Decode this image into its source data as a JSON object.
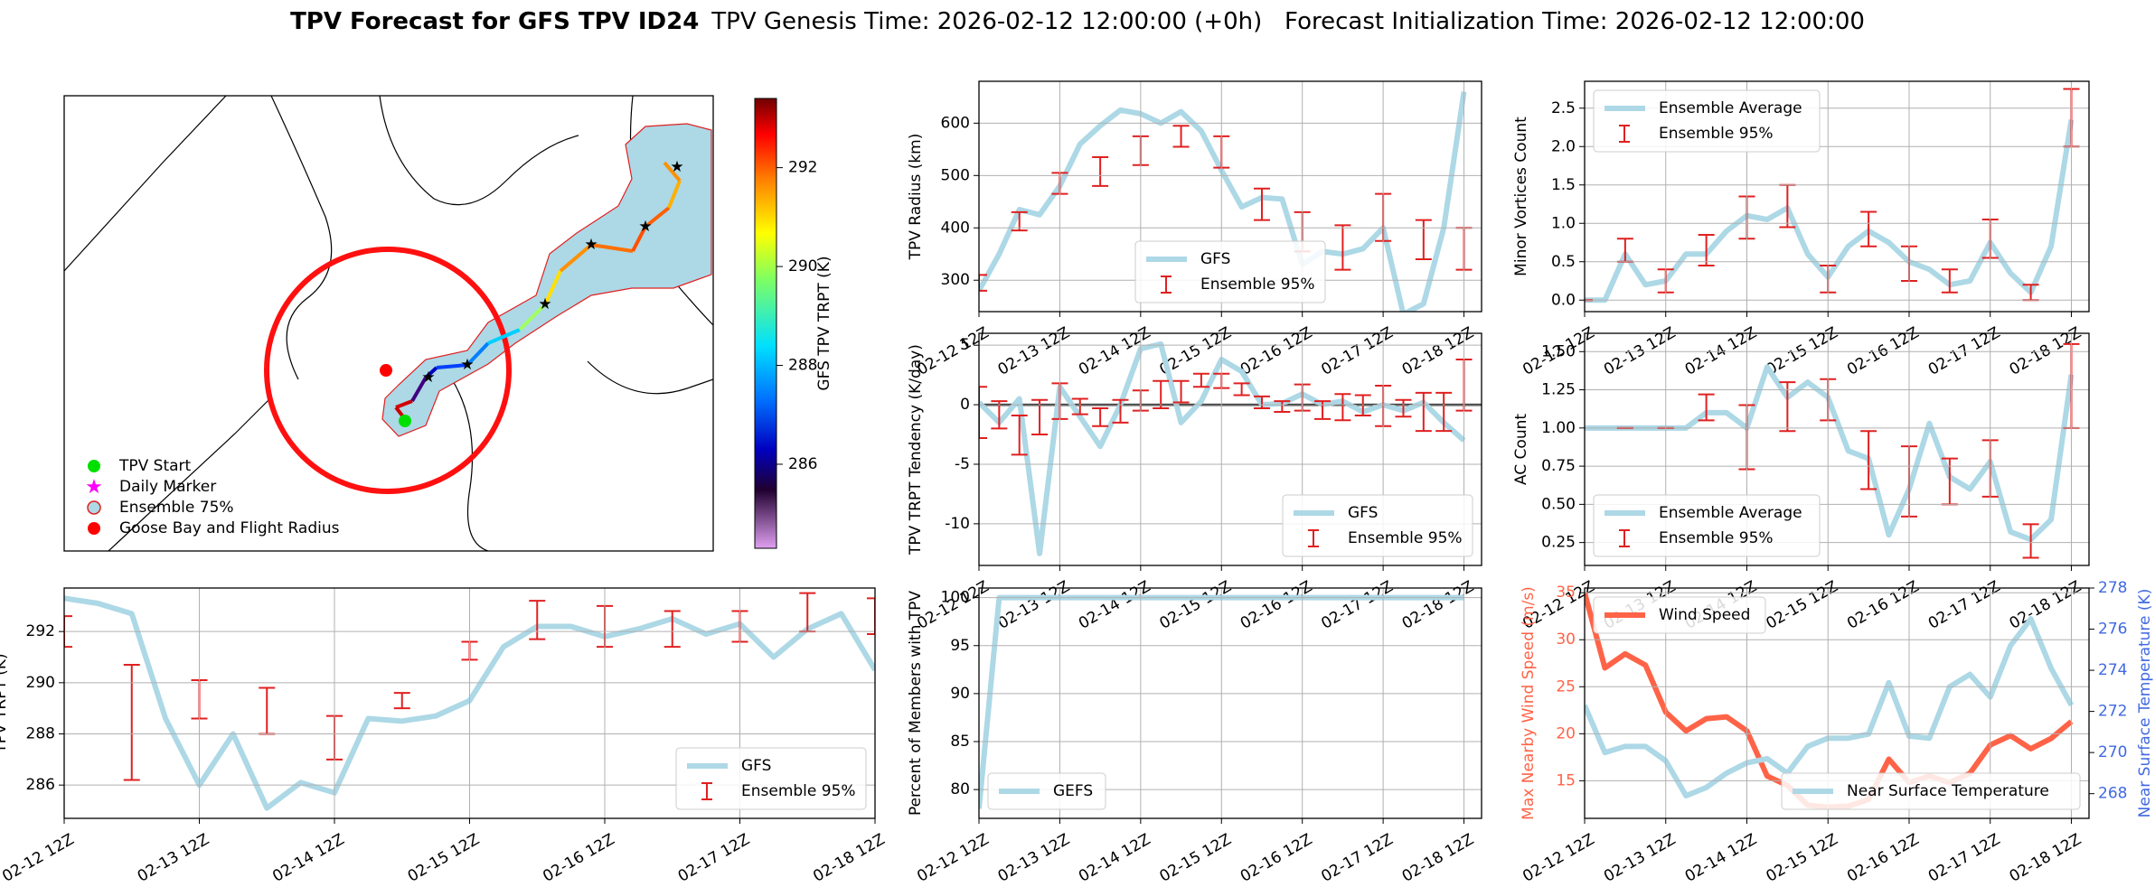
{
  "title": "TPV Forecast for GFS TPV ID24",
  "subtitle": "TPV Genesis Time: 2026-02-12 12:00:00 (+0h)   Forecast Initialization Time: 2026-02-12 12:00:00",
  "chart_data": [
    {
      "type": "map",
      "legend": [
        {
          "name": "TPV Start",
          "marker": "circle",
          "color": "#00e000"
        },
        {
          "name": "Daily Marker",
          "marker": "star",
          "color": "#ff00ff"
        },
        {
          "name": "Ensemble 75%",
          "marker": "circle",
          "color": "#add8e6",
          "edge": "#e02020"
        },
        {
          "name": "Goose Bay and Flight Radius",
          "marker": "circle",
          "color": "#ff0000"
        }
      ],
      "colorbar": {
        "label": "GFS TPV TRPT (K)",
        "clim": [
          284.3,
          293.4
        ],
        "ticks": [
          286,
          288,
          290,
          292
        ]
      }
    },
    {
      "type": "line",
      "ylabel": "TPV Radius (km)",
      "ylim": [
        240,
        680
      ],
      "yticks": [
        300,
        400,
        500,
        600
      ],
      "grid": true,
      "legend": "lower center",
      "categories": [
        "02-12 12Z",
        null,
        null,
        null,
        "02-13 12Z",
        null,
        null,
        null,
        "02-14 12Z",
        null,
        null,
        null,
        "02-15 12Z",
        null,
        null,
        null,
        "02-16 12Z",
        null,
        null,
        null,
        "02-17 12Z",
        null,
        null,
        null,
        "02-18 12Z"
      ],
      "series": [
        {
          "name": "GFS",
          "color": "#add8e6",
          "values": [
            280,
            350,
            435,
            425,
            480,
            560,
            595,
            625,
            618,
            600,
            622,
            585,
            510,
            440,
            458,
            455,
            330,
            355,
            350,
            360,
            400,
            235,
            255,
            400,
            660
          ]
        },
        {
          "name": "Ensemble 95%",
          "color": "#e02020",
          "low": [
            280,
            null,
            395,
            null,
            465,
            null,
            480,
            null,
            520,
            null,
            555,
            null,
            515,
            null,
            415,
            null,
            355,
            null,
            320,
            null,
            375,
            null,
            340,
            null,
            320
          ],
          "high": [
            310,
            null,
            430,
            null,
            505,
            null,
            535,
            null,
            575,
            null,
            595,
            null,
            575,
            null,
            475,
            null,
            430,
            null,
            405,
            null,
            465,
            null,
            415,
            null,
            400
          ]
        }
      ]
    },
    {
      "type": "line",
      "ylabel": "Minor Vortices Count",
      "ylim": [
        -0.15,
        2.85
      ],
      "yticks": [
        {
          "value": 0,
          "label": "0.0"
        },
        0.5,
        {
          "value": 1,
          "label": "1.0"
        },
        1.5,
        {
          "value": 2,
          "label": "2.0"
        },
        2.5
      ],
      "grid": true,
      "legend": "upper left",
      "categories": [
        "02-12 12Z",
        null,
        null,
        null,
        "02-13 12Z",
        null,
        null,
        null,
        "02-14 12Z",
        null,
        null,
        null,
        "02-15 12Z",
        null,
        null,
        null,
        "02-16 12Z",
        null,
        null,
        null,
        "02-17 12Z",
        null,
        null,
        null,
        "02-18 12Z"
      ],
      "series": [
        {
          "name": "Ensemble Average",
          "color": "#add8e6",
          "values": [
            0,
            0,
            0.6,
            0.2,
            0.25,
            0.6,
            0.6,
            0.9,
            1.1,
            1.05,
            1.2,
            0.6,
            0.3,
            0.7,
            0.9,
            0.75,
            0.5,
            0.4,
            0.2,
            0.25,
            0.75,
            0.35,
            0.1,
            0.7,
            2.35
          ]
        },
        {
          "name": "Ensemble 95%",
          "color": "#e02020",
          "low": [
            0,
            null,
            0.5,
            null,
            0.1,
            null,
            0.45,
            null,
            0.8,
            null,
            0.95,
            null,
            0.1,
            null,
            0.7,
            null,
            0.25,
            null,
            0.1,
            null,
            0.55,
            null,
            0,
            null,
            2.0
          ],
          "high": [
            0,
            null,
            0.8,
            null,
            0.4,
            null,
            0.85,
            null,
            1.35,
            null,
            1.5,
            null,
            0.45,
            null,
            1.15,
            null,
            0.7,
            null,
            0.4,
            null,
            1.05,
            null,
            0.2,
            null,
            2.75
          ]
        }
      ]
    },
    {
      "type": "line",
      "ylabel": "TPV TRPT Tendency (K/day)",
      "ylim": [
        -13.5,
        6
      ],
      "yticks": [
        -10,
        -5,
        0,
        5
      ],
      "grid": true,
      "legend": "lower right",
      "hline": 0,
      "categories": [
        "02-12 12Z",
        null,
        null,
        null,
        "02-13 12Z",
        null,
        null,
        null,
        "02-14 12Z",
        null,
        null,
        null,
        "02-15 12Z",
        null,
        null,
        null,
        "02-16 12Z",
        null,
        null,
        null,
        "02-17 12Z",
        null,
        null,
        null,
        "02-18 12Z"
      ],
      "series": [
        {
          "name": "GFS",
          "color": "#add8e6",
          "values": [
            0.2,
            -1.5,
            0.5,
            -12.5,
            1.5,
            -1,
            -3.5,
            0,
            4.7,
            5.1,
            -1.5,
            0.3,
            3.8,
            2.8,
            0,
            0.1,
            0.9,
            0,
            0.3,
            -0.6,
            0,
            -0.5,
            0.2,
            -1.5,
            -3
          ]
        },
        {
          "name": "Ensemble 95%",
          "color": "#e02020",
          "low": [
            -2.8,
            -2,
            -4.2,
            -2.5,
            -1.2,
            -0.8,
            -1.8,
            -1.5,
            -0.5,
            -0.3,
            0.2,
            1.5,
            1.4,
            0.8,
            -0.3,
            -0.6,
            -0.5,
            -1.2,
            -1.3,
            -0.9,
            -1.8,
            -1,
            -2.2,
            -2.2,
            -0.5
          ],
          "high": [
            1.5,
            0.3,
            -0.9,
            0.4,
            1.8,
            0.5,
            -0.3,
            0.4,
            1.2,
            2,
            2,
            2.6,
            2.6,
            1.8,
            0.7,
            0.3,
            1.7,
            0.3,
            0.9,
            0.8,
            1.6,
            0.4,
            1,
            1,
            3.8
          ]
        }
      ]
    },
    {
      "type": "line",
      "ylabel": "AC Count",
      "ylim": [
        0.1,
        1.62
      ],
      "yticks": [
        0.25,
        {
          "value": 0.5,
          "label": "0.50"
        },
        0.75,
        {
          "value": 1,
          "label": "1.00"
        },
        1.25,
        {
          "value": 1.5,
          "label": "1.50"
        }
      ],
      "grid": true,
      "legend": "lower left",
      "categories": [
        "02-12 12Z",
        null,
        null,
        null,
        "02-13 12Z",
        null,
        null,
        null,
        "02-14 12Z",
        null,
        null,
        null,
        "02-15 12Z",
        null,
        null,
        null,
        "02-16 12Z",
        null,
        null,
        null,
        "02-17 12Z",
        null,
        null,
        null,
        "02-18 12Z"
      ],
      "series": [
        {
          "name": "Ensemble Average",
          "color": "#add8e6",
          "values": [
            1,
            1,
            1,
            1,
            1,
            1,
            1.1,
            1.1,
            1,
            1.4,
            1.2,
            1.3,
            1.2,
            0.85,
            0.8,
            0.3,
            0.6,
            1.03,
            0.68,
            0.6,
            0.78,
            0.32,
            0.27,
            0.4,
            1.35
          ]
        },
        {
          "name": "Ensemble 95%",
          "color": "#e02020",
          "low": [
            null,
            null,
            1,
            null,
            1,
            null,
            1.05,
            null,
            0.73,
            null,
            0.98,
            null,
            1.05,
            null,
            0.6,
            null,
            0.42,
            null,
            0.5,
            null,
            0.55,
            null,
            0.15,
            null,
            1.0
          ],
          "high": [
            null,
            null,
            1,
            null,
            1,
            null,
            1.22,
            null,
            1.15,
            null,
            1.3,
            null,
            1.32,
            null,
            0.98,
            null,
            0.88,
            null,
            0.8,
            null,
            0.92,
            null,
            0.37,
            null,
            1.55
          ]
        }
      ]
    },
    {
      "type": "line",
      "ylabel": "TPV TRPT (K)",
      "ylim": [
        284.7,
        293.7
      ],
      "yticks": [
        286,
        288,
        290,
        292
      ],
      "grid": true,
      "legend": "lower right",
      "categories": [
        "02-12 12Z",
        null,
        null,
        null,
        "02-13 12Z",
        null,
        null,
        null,
        "02-14 12Z",
        null,
        null,
        null,
        "02-15 12Z",
        null,
        null,
        null,
        "02-16 12Z",
        null,
        null,
        null,
        "02-17 12Z",
        null,
        null,
        null,
        "02-18 12Z"
      ],
      "series": [
        {
          "name": "GFS",
          "color": "#add8e6",
          "values": [
            293.3,
            293.1,
            292.7,
            288.6,
            286,
            288,
            285.1,
            286.1,
            285.7,
            288.6,
            288.5,
            288.7,
            289.3,
            291.4,
            292.2,
            292.2,
            291.8,
            292.1,
            292.5,
            291.9,
            292.3,
            291,
            292.1,
            292.7,
            290.5
          ]
        },
        {
          "name": "Ensemble 95%",
          "color": "#e02020",
          "low": [
            291.4,
            null,
            286.2,
            null,
            288.6,
            null,
            288,
            null,
            287,
            null,
            289,
            null,
            290.9,
            null,
            291.7,
            null,
            291.4,
            null,
            291.4,
            null,
            291.6,
            null,
            292,
            null,
            291.9
          ],
          "high": [
            292.6,
            null,
            290.7,
            null,
            290.1,
            null,
            289.8,
            null,
            288.7,
            null,
            289.6,
            null,
            291.6,
            null,
            293.2,
            null,
            293,
            null,
            292.8,
            null,
            292.8,
            null,
            293.5,
            null,
            293.3
          ]
        }
      ]
    },
    {
      "type": "line",
      "ylabel": "Percent of Members with TPV",
      "ylim": [
        77,
        101
      ],
      "yticks": [
        80,
        85,
        90,
        95,
        100
      ],
      "grid": true,
      "legend": "lower left",
      "categories": [
        "02-12 12Z",
        null,
        null,
        null,
        "02-13 12Z",
        null,
        null,
        null,
        "02-14 12Z",
        null,
        null,
        null,
        "02-15 12Z",
        null,
        null,
        null,
        "02-16 12Z",
        null,
        null,
        null,
        "02-17 12Z",
        null,
        null,
        null,
        "02-18 12Z"
      ],
      "series": [
        {
          "name": "GEFS",
          "color": "#add8e6",
          "values": [
            78,
            100,
            100,
            100,
            100,
            100,
            100,
            100,
            100,
            100,
            100,
            100,
            100,
            100,
            100,
            100,
            100,
            100,
            100,
            100,
            100,
            100,
            100,
            100,
            100
          ]
        }
      ]
    },
    {
      "type": "line",
      "ylabel": "Max Nearby Wind Speed (m/s)",
      "y2label": "Near Surface Temperature (K)",
      "ycolor": "#ff6347",
      "y2color": "#4169e1",
      "ylim": [
        11,
        35.5
      ],
      "yticks": [
        15,
        20,
        25,
        30,
        35
      ],
      "y2lim": [
        266.8,
        278
      ],
      "y2ticks": [
        268,
        270,
        272,
        274,
        276,
        278
      ],
      "grid": true,
      "categories": [
        "02-12 12Z",
        null,
        null,
        null,
        "02-13 12Z",
        null,
        null,
        null,
        "02-14 12Z",
        null,
        null,
        null,
        "02-15 12Z",
        null,
        null,
        null,
        "02-16 12Z",
        null,
        null,
        null,
        "02-17 12Z",
        null,
        null,
        null,
        "02-18 12Z"
      ],
      "series": [
        {
          "name": "Wind Speed",
          "color": "#ff6347",
          "legend": "upper left",
          "values": [
            35,
            27,
            28.5,
            27.3,
            22.3,
            20.3,
            21.6,
            21.8,
            20.3,
            15.5,
            14.5,
            12.4,
            12.2,
            12.3,
            13,
            17.3,
            14.8,
            15.5,
            14.8,
            15.8,
            18.8,
            19.8,
            18.4,
            19.5,
            21.3
          ]
        },
        {
          "name": "Near Surface Temperature",
          "color": "#add8e6",
          "axis": "y2",
          "legend": "lower right",
          "values": [
            272.3,
            270,
            270.3,
            270.3,
            269.6,
            267.9,
            268.3,
            269,
            269.5,
            269.7,
            269,
            270.3,
            270.7,
            270.7,
            270.9,
            273.4,
            270.8,
            270.7,
            273.2,
            273.8,
            272.7,
            275.2,
            276.5,
            274.1,
            272.3
          ]
        }
      ]
    }
  ]
}
